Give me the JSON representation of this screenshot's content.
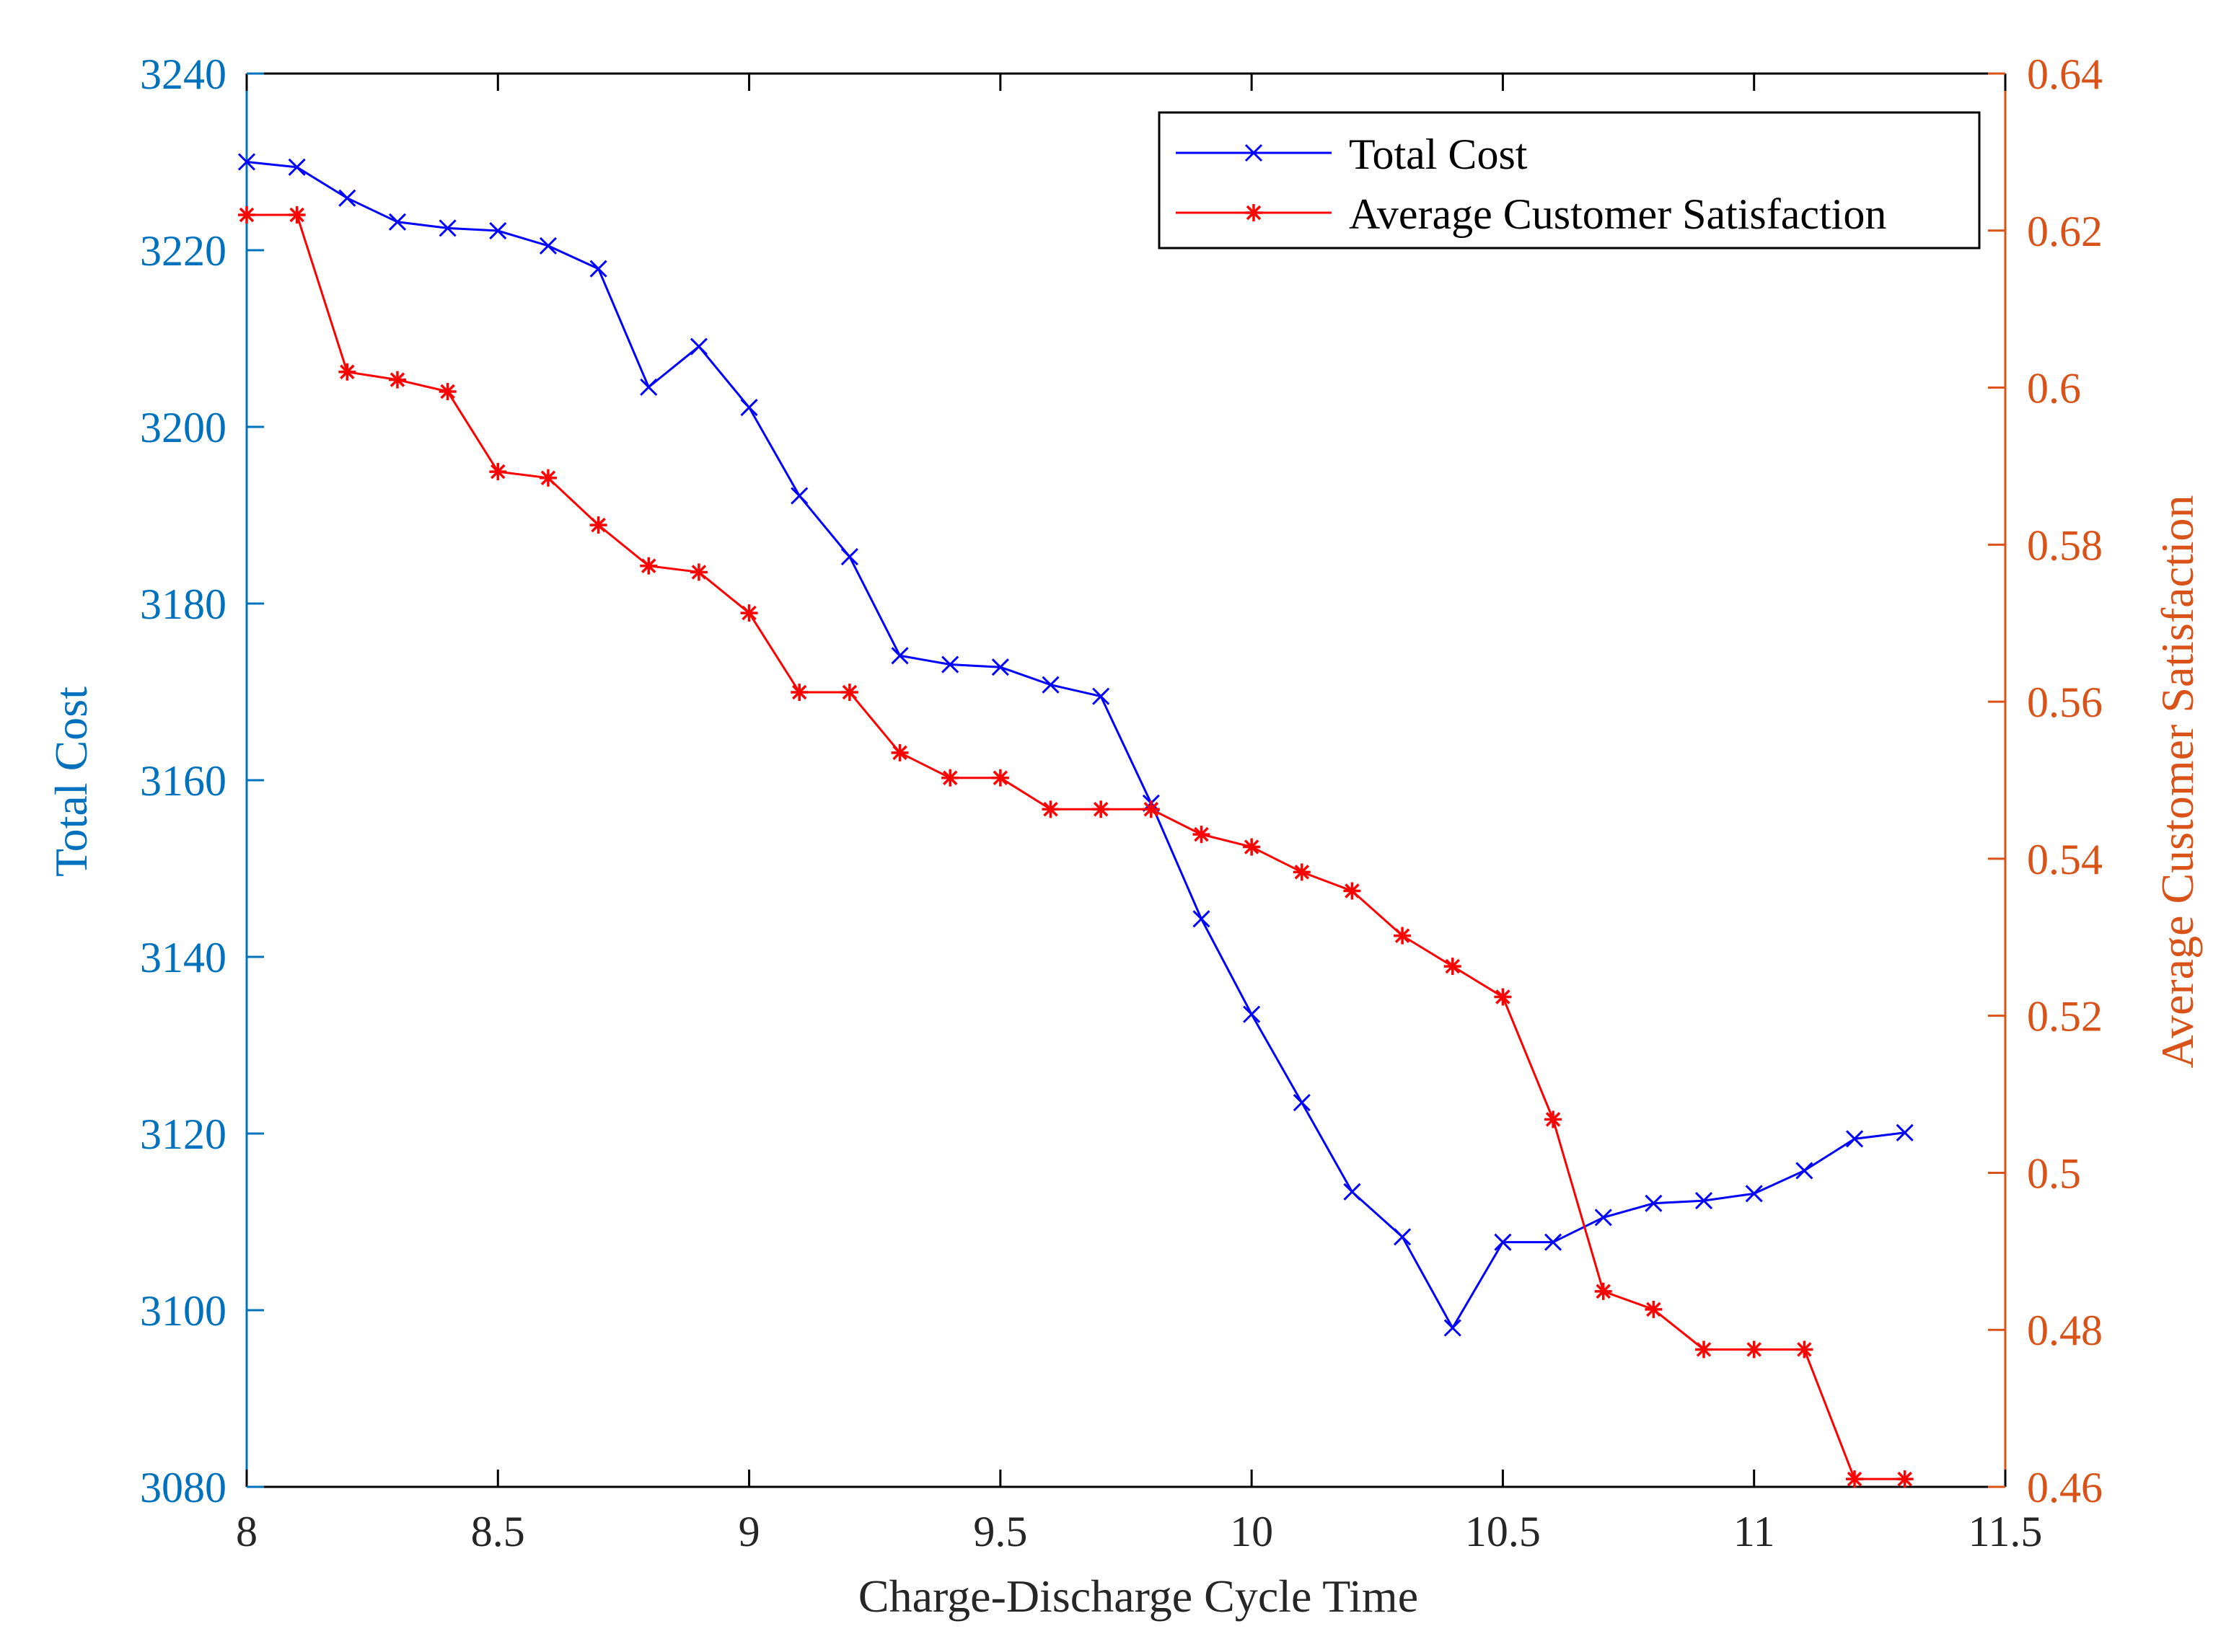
{
  "chart_data": {
    "type": "line",
    "title": "",
    "xlabel": "Charge-Discharge Cycle Time",
    "ylabel_left": "Total Cost",
    "ylabel_right": "Average Customer Satisfaction",
    "xlim": [
      8,
      11.5
    ],
    "ylim_left": [
      3080,
      3240
    ],
    "ylim_right": [
      0.46,
      0.64
    ],
    "x_ticks": [
      "8",
      "8.5",
      "9",
      "9.5",
      "10",
      "10.5",
      "11",
      "11.5"
    ],
    "y_left_ticks": [
      "3080",
      "3100",
      "3120",
      "3140",
      "3160",
      "3180",
      "3200",
      "3220",
      "3240"
    ],
    "y_right_ticks": [
      "0.46",
      "0.48",
      "0.5",
      "0.52",
      "0.54",
      "0.56",
      "0.58",
      "0.6",
      "0.62",
      "0.64"
    ],
    "grid": false,
    "legend": {
      "placement": "top-right",
      "entries": [
        "Total Cost",
        "Average Customer Satisfaction"
      ]
    },
    "x": [
      8.0,
      8.1,
      8.2,
      8.3,
      8.4,
      8.5,
      8.6,
      8.7,
      8.8,
      8.9,
      9.0,
      9.1,
      9.2,
      9.3,
      9.4,
      9.5,
      9.6,
      9.7,
      9.8,
      9.9,
      10.0,
      10.1,
      10.2,
      10.3,
      10.4,
      10.5,
      10.6,
      10.7,
      10.8,
      10.9,
      11.0,
      11.1,
      11.2,
      11.3
    ],
    "series": [
      {
        "name": "Total Cost",
        "axis": "left",
        "color": "#0000ff",
        "marker": "x",
        "values": [
          3230.0,
          3229.4,
          3225.9,
          3223.2,
          3222.5,
          3222.2,
          3220.5,
          3217.9,
          3204.5,
          3209.1,
          3202.2,
          3192.2,
          3185.3,
          3174.1,
          3173.1,
          3172.8,
          3170.8,
          3169.5,
          3157.4,
          3144.3,
          3133.5,
          3123.5,
          3113.4,
          3108.3,
          3098.0,
          3107.7,
          3107.7,
          3110.5,
          3112.1,
          3112.4,
          3113.2,
          3115.8,
          3119.4,
          3120.1
        ]
      },
      {
        "name": "Average Customer Satisfaction",
        "axis": "right",
        "color": "#ff0000",
        "marker": "*",
        "values": [
          0.622,
          0.622,
          0.602,
          0.601,
          0.5995,
          0.5893,
          0.5885,
          0.5825,
          0.5773,
          0.5765,
          0.5713,
          0.5612,
          0.5612,
          0.5535,
          0.5503,
          0.5503,
          0.5463,
          0.5463,
          0.5463,
          0.5431,
          0.5415,
          0.5383,
          0.5359,
          0.5302,
          0.5263,
          0.5224,
          0.5068,
          0.4849,
          0.4826,
          0.4775,
          0.4775,
          0.4775,
          0.461,
          0.461
        ]
      }
    ],
    "colors": {
      "left_axis": "#0072bd",
      "right_axis": "#d95319",
      "axes": "#000000"
    }
  }
}
